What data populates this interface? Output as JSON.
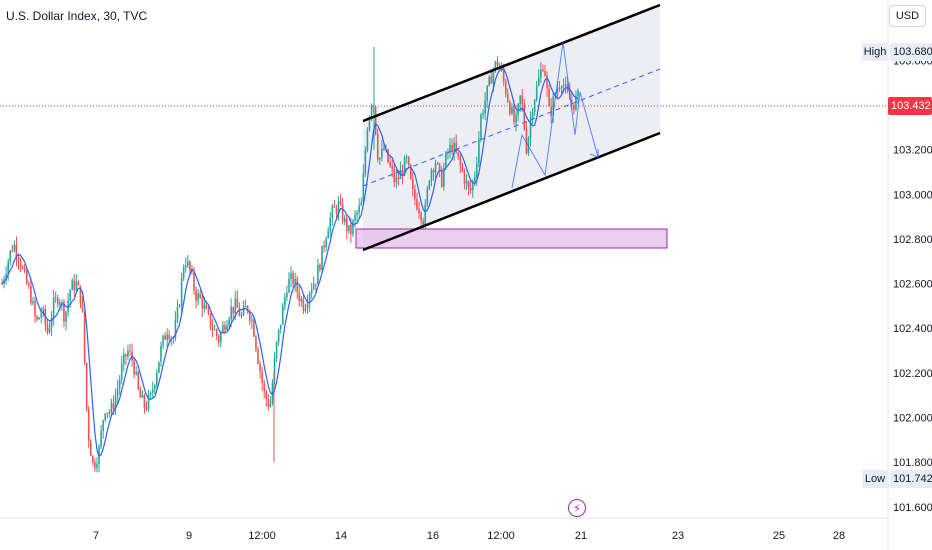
{
  "header": {
    "title": "U.S. Dollar Index, 30, TVC"
  },
  "currency_button": {
    "label": "USD"
  },
  "price_tags": {
    "high_label": "High",
    "high_value": "103.680",
    "low_label": "Low",
    "low_value": "101.742",
    "last_value": "103.432"
  },
  "event_icon": {
    "glyph": "⚡"
  },
  "colors": {
    "up": "#26a69a",
    "down": "#ef5350",
    "ma": "#2962ff",
    "channel": "#000000",
    "zone": "#e1bee7",
    "zone_border": "#9c27b0",
    "last_price": "#f23645"
  },
  "chart_data": {
    "type": "candlestick",
    "x_ticks": [
      "7",
      "9",
      "12:00",
      "14",
      "16",
      "12:00",
      "21",
      "23",
      "25",
      "28"
    ],
    "y_ticks": [
      "103.600",
      "103.400",
      "103.200",
      "103.000",
      "102.800",
      "102.600",
      "102.400",
      "102.200",
      "102.000",
      "101.800",
      "101.600"
    ],
    "y_tick_values": [
      103.6,
      103.4,
      103.2,
      103.0,
      102.8,
      102.6,
      102.4,
      102.2,
      102.0,
      101.8,
      101.6
    ],
    "ylim": [
      101.55,
      103.87
    ],
    "high": 103.68,
    "low": 101.742,
    "last": 103.432,
    "close_path": [
      102.6,
      102.7,
      102.78,
      102.72,
      102.62,
      102.55,
      102.42,
      102.48,
      102.38,
      102.5,
      102.55,
      102.45,
      102.58,
      102.6,
      102.52,
      101.95,
      101.78,
      101.85,
      102.05,
      102.02,
      102.1,
      102.22,
      102.3,
      102.25,
      102.1,
      102.05,
      102.08,
      102.2,
      102.32,
      102.4,
      102.35,
      102.5,
      102.72,
      102.65,
      102.55,
      102.52,
      102.45,
      102.4,
      102.35,
      102.42,
      102.48,
      102.5,
      102.45,
      102.5,
      102.42,
      102.25,
      102.1,
      102.05,
      102.3,
      102.45,
      102.6,
      102.62,
      102.55,
      102.5,
      102.58,
      102.62,
      102.72,
      102.85,
      102.92,
      102.95,
      102.88,
      102.82,
      102.9,
      102.95,
      103.3,
      103.45,
      103.15,
      103.2,
      103.12,
      103.05,
      103.1,
      103.15,
      103.0,
      102.95,
      102.88,
      103.1,
      103.15,
      103.05,
      103.18,
      103.22,
      103.15,
      103.08,
      103.0,
      103.1,
      103.35,
      103.45,
      103.55,
      103.6,
      103.5,
      103.4,
      103.3,
      103.45,
      103.2,
      103.4,
      103.5,
      103.6,
      103.35,
      103.45,
      103.52,
      103.45,
      103.4,
      103.432
    ]
  }
}
